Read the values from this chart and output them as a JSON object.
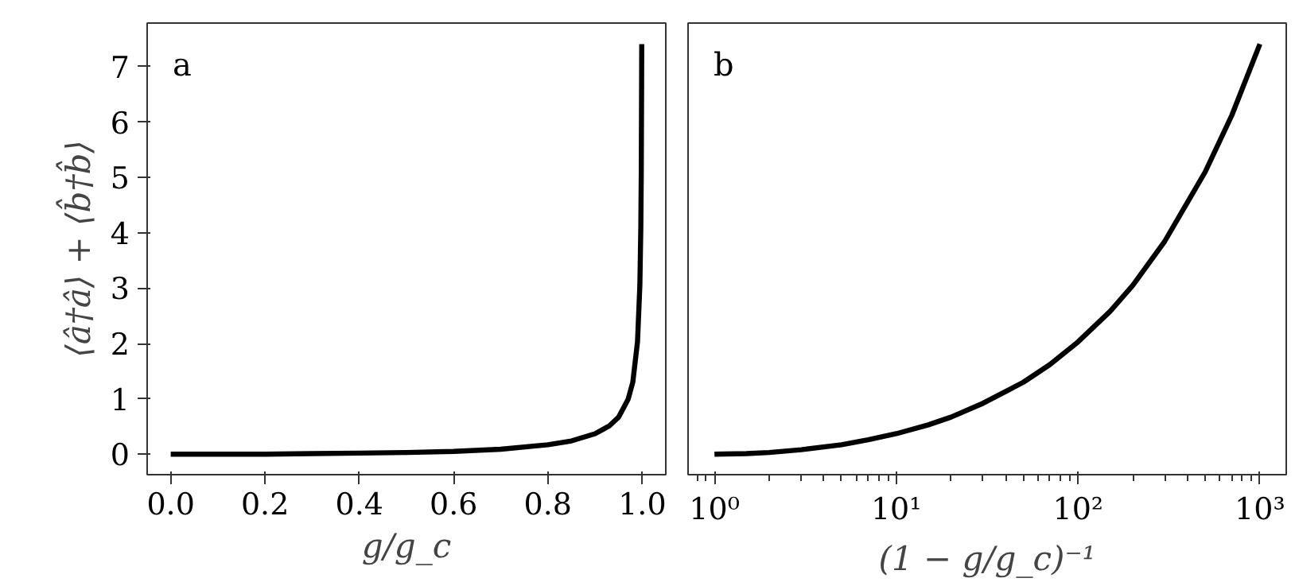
{
  "chart_data": [
    {
      "type": "line",
      "xlabel": "g/g_c",
      "ylabel": "⟨â†â⟩ + ⟨b̂†b̂⟩",
      "annotations": [
        "a"
      ],
      "x": [
        0,
        0.1,
        0.2,
        0.3,
        0.4,
        0.5,
        0.6,
        0.7,
        0.8,
        0.85,
        0.9,
        0.93,
        0.95,
        0.97,
        0.98,
        0.99,
        0.995,
        0.997,
        0.998,
        0.999
      ],
      "series": [
        {
          "color": "#000000",
          "values": [
            0,
            0,
            0,
            0.01,
            0.02,
            0.03,
            0.05,
            0.09,
            0.17,
            0.24,
            0.37,
            0.51,
            0.67,
            0.99,
            1.3,
            2.03,
            3.05,
            4.08,
            5.1,
            7.41
          ]
        }
      ],
      "xlim": [
        -0.05,
        1.05
      ],
      "xticks": [
        {
          "value": 0,
          "label": "0.0"
        },
        0.2,
        0.4,
        0.6,
        0.8,
        {
          "value": 1,
          "label": "1.0"
        }
      ],
      "ylim": [
        -0.37,
        7.79
      ],
      "yticks": [
        0,
        1,
        2,
        3,
        4,
        5,
        6,
        7
      ],
      "grid": false
    },
    {
      "type": "line",
      "xlabel": "(1 − g/g_c)⁻¹",
      "annotations": [
        "b"
      ],
      "log": "x",
      "x": [
        1,
        1.5,
        2,
        3,
        5,
        7,
        10,
        15,
        20,
        30,
        50,
        70,
        100,
        150,
        200,
        300,
        500,
        700,
        1000
      ],
      "series": [
        {
          "color": "#000000",
          "values": [
            0,
            0.01,
            0.03,
            0.08,
            0.17,
            0.26,
            0.37,
            0.53,
            0.67,
            0.92,
            1.3,
            1.62,
            2.03,
            2.58,
            3.05,
            3.85,
            5.1,
            6.12,
            7.41
          ]
        }
      ],
      "xlim": [
        0.716,
        1396
      ],
      "xticks": [
        {
          "value": 1,
          "label": "10⁰"
        },
        {
          "value": 10,
          "label": "10¹"
        },
        {
          "value": 100,
          "label": "10²"
        },
        {
          "value": 1000,
          "label": "10³"
        }
      ],
      "ylim": [
        -0.37,
        7.79
      ],
      "yticks": [
        0,
        1,
        2,
        3,
        4,
        5,
        6,
        7
      ],
      "tick_labels": "x",
      "grid": false
    }
  ]
}
